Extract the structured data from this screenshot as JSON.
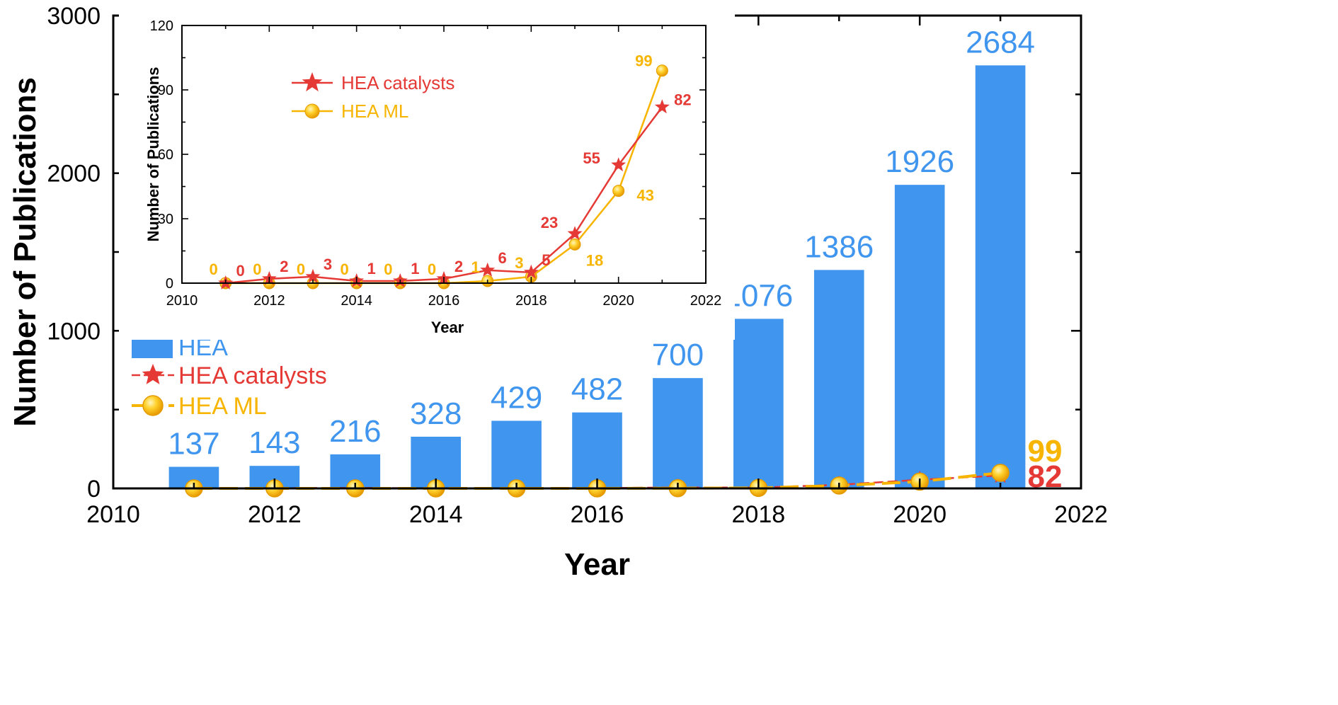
{
  "colors": {
    "hea": "#4096ee",
    "catalysts": "#e53935",
    "ml": "#f7b500",
    "ml_fill": "#ffd22e"
  },
  "chart_data": [
    {
      "type": "bar",
      "xlabel": "Year",
      "ylabel": "Number of Publications",
      "xlim": [
        2010,
        2022
      ],
      "ylim": [
        0,
        3000
      ],
      "xticks": [
        2010,
        2012,
        2014,
        2016,
        2018,
        2020,
        2022
      ],
      "yticks": [
        0,
        1000,
        2000,
        3000
      ],
      "legend_position": "bottom-left",
      "x": [
        2011,
        2012,
        2013,
        2014,
        2015,
        2016,
        2017,
        2018,
        2019,
        2020,
        2021
      ],
      "series": [
        {
          "name": "HEA",
          "kind": "bar",
          "values": [
            137,
            143,
            216,
            328,
            429,
            482,
            700,
            1076,
            1386,
            1926,
            2684
          ]
        },
        {
          "name": "HEA catalysts",
          "kind": "line",
          "marker": "star",
          "values": [
            0,
            2,
            3,
            1,
            1,
            2,
            6,
            5,
            23,
            55,
            82
          ]
        },
        {
          "name": "HEA ML",
          "kind": "line",
          "marker": "circle",
          "values": [
            0,
            0,
            0,
            0,
            0,
            0,
            1,
            3,
            18,
            43,
            99
          ]
        }
      ],
      "end_labels": {
        "ml": "99",
        "catalysts": "82"
      }
    },
    {
      "type": "line",
      "position": "inset-top-left",
      "xlabel": "Year",
      "ylabel": "Number of Publications",
      "xlim": [
        2010,
        2022
      ],
      "ylim": [
        0,
        120
      ],
      "xticks": [
        2010,
        2012,
        2014,
        2016,
        2018,
        2020,
        2022
      ],
      "yticks": [
        0,
        30,
        60,
        90,
        120
      ],
      "legend_position": "top-left",
      "x": [
        2011,
        2012,
        2013,
        2014,
        2015,
        2016,
        2017,
        2018,
        2019,
        2020,
        2021
      ],
      "series": [
        {
          "name": "HEA catalysts",
          "marker": "star",
          "values": [
            0,
            2,
            3,
            1,
            1,
            2,
            6,
            5,
            23,
            55,
            82
          ]
        },
        {
          "name": "HEA ML",
          "marker": "circle",
          "values": [
            0,
            0,
            0,
            0,
            0,
            0,
            1,
            3,
            18,
            43,
            99
          ]
        }
      ]
    }
  ]
}
